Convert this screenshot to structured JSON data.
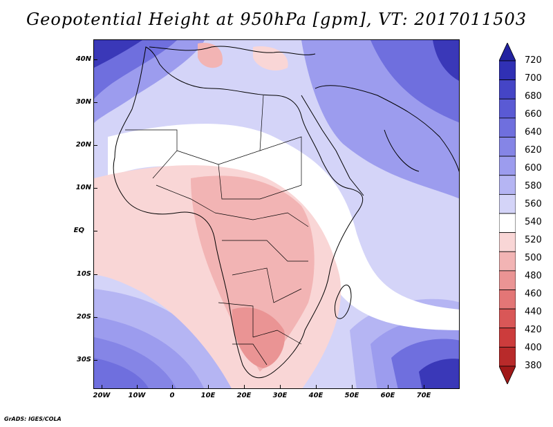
{
  "title": "Geopotential Height at 950hPa [gpm], VT: 2017011503",
  "credit": "GrADS: IGES/COLA",
  "lat_labels": [
    "40N",
    "30N",
    "20N",
    "10N",
    "EQ",
    "10S",
    "20S",
    "30S"
  ],
  "lon_labels": [
    "20W",
    "10W",
    "0",
    "10E",
    "20E",
    "30E",
    "40E",
    "50E",
    "60E",
    "70E"
  ],
  "colorbar": {
    "levels": [
      "720",
      "700",
      "680",
      "660",
      "640",
      "620",
      "600",
      "580",
      "560",
      "540",
      "520",
      "500",
      "480",
      "460",
      "440",
      "420",
      "400",
      "380"
    ],
    "colors": [
      "#2222a0",
      "#3030b4",
      "#4545c6",
      "#5a5ad4",
      "#6f6fde",
      "#8585e6",
      "#9c9cee",
      "#b5b5f3",
      "#d4d4f8",
      "#ffffff",
      "#f9d6d6",
      "#f2b4b4",
      "#ea9494",
      "#e37676",
      "#d95757",
      "#cc3c3c",
      "#b82a2a",
      "#a01818"
    ]
  },
  "map_colors": {
    "ocean_deep_blue": "#3a38b8",
    "blue_mid": "#6f6fde",
    "blue_light": "#b5b5f3",
    "blue_pale": "#d4d4f8",
    "white": "#ffffff",
    "pink_pale": "#f9d6d6",
    "pink": "#f2b4b4",
    "pink_mid": "#ea9494"
  }
}
